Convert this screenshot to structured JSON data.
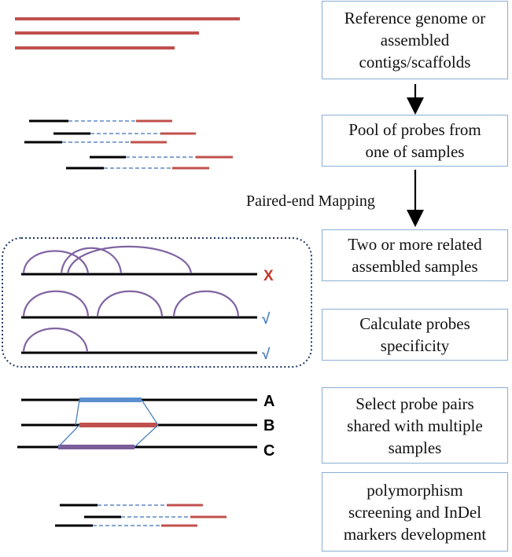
{
  "steps": [
    {
      "id": "reference",
      "text": "Reference genome or\nassembled\ncontigs/scaffolds"
    },
    {
      "id": "pool",
      "text": "Pool of probes from\none of samples"
    },
    {
      "id": "two-samples",
      "text": "Two or more related\nassembled samples"
    },
    {
      "id": "specificity",
      "text": "Calculate probes\nspecificity"
    },
    {
      "id": "select-pairs",
      "text": "Select probe pairs\nshared with multiple\nsamples"
    },
    {
      "id": "polymorphism",
      "text": "polymorphism\nscreening and InDel\nmarkers development"
    }
  ],
  "arrow_label": "Paired-end Mapping",
  "specificity_marks": {
    "fail": "X",
    "pass_1": "√",
    "pass_2": "√"
  },
  "sample_labels": {
    "a": "A",
    "b": "B",
    "c": "C"
  },
  "colors": {
    "reference": "#c0504d",
    "probe_left": "#000000",
    "probe_link": "#3f6fb5",
    "arc": "#8064a2",
    "box_border": "#8aaed3",
    "dotted_border": "#1f3864",
    "fail_mark": "#c0392b",
    "pass_mark": "#4f81bd",
    "segment_a": "#5b8fd0",
    "segment_b": "#c0504d",
    "segment_c": "#7a5d9a"
  }
}
